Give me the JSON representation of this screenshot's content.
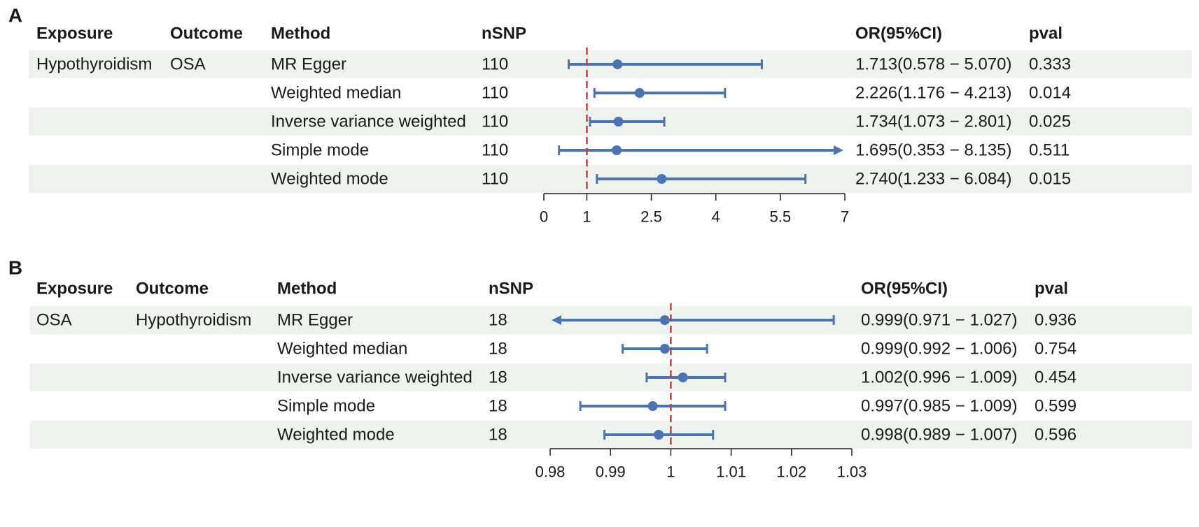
{
  "columns": [
    "Exposure",
    "Outcome",
    "Method",
    "nSNP",
    "OR(95%CI)",
    "pval"
  ],
  "colors": {
    "stripe": "#eef3ee",
    "marker": "#4a74b4",
    "reference": "#e0302a",
    "axis": "#222222"
  },
  "chart_data": [
    {
      "panel": "A",
      "type": "forest",
      "exposure": "Hypothyroidism",
      "outcome": "OSA",
      "reference_line": 1,
      "xlim": [
        0,
        7
      ],
      "ticks": [
        0,
        1,
        2.5,
        4,
        5.5,
        7
      ],
      "tick_labels": [
        "0",
        "1",
        "2.5",
        "4",
        "5.5",
        "7"
      ],
      "rows": [
        {
          "method": "MR Egger",
          "nsnp": "110",
          "or": 1.713,
          "lower": 0.578,
          "upper": 5.07,
          "arrow_left": false,
          "arrow_right": false,
          "or_ci": "1.713(0.578 − 5.070)",
          "pval": "0.333"
        },
        {
          "method": "Weighted median",
          "nsnp": "110",
          "or": 2.226,
          "lower": 1.176,
          "upper": 4.213,
          "arrow_left": false,
          "arrow_right": false,
          "or_ci": "2.226(1.176 − 4.213)",
          "pval": "0.014"
        },
        {
          "method": "Inverse variance weighted",
          "nsnp": "110",
          "or": 1.734,
          "lower": 1.073,
          "upper": 2.801,
          "arrow_left": false,
          "arrow_right": false,
          "or_ci": "1.734(1.073 − 2.801)",
          "pval": "0.025"
        },
        {
          "method": "Simple mode",
          "nsnp": "110",
          "or": 1.695,
          "lower": 0.353,
          "upper": 8.135,
          "arrow_left": false,
          "arrow_right": true,
          "or_ci": "1.695(0.353 − 8.135)",
          "pval": "0.511"
        },
        {
          "method": "Weighted mode",
          "nsnp": "110",
          "or": 2.74,
          "lower": 1.233,
          "upper": 6.084,
          "arrow_left": false,
          "arrow_right": false,
          "or_ci": "2.740(1.233 − 6.084)",
          "pval": "0.015"
        }
      ]
    },
    {
      "panel": "B",
      "type": "forest",
      "exposure": "OSA",
      "outcome": "Hypothyroidism",
      "reference_line": 1,
      "xlim": [
        0.98,
        1.03
      ],
      "ticks": [
        0.98,
        0.99,
        1,
        1.01,
        1.02,
        1.03
      ],
      "tick_labels": [
        "0.98",
        "0.99",
        "1",
        "1.01",
        "1.02",
        "1.03"
      ],
      "rows": [
        {
          "method": "MR Egger",
          "nsnp": "18",
          "or": 0.999,
          "lower": 0.971,
          "upper": 1.027,
          "arrow_left": true,
          "arrow_right": false,
          "or_ci": "0.999(0.971 − 1.027)",
          "pval": "0.936"
        },
        {
          "method": "Weighted median",
          "nsnp": "18",
          "or": 0.999,
          "lower": 0.992,
          "upper": 1.006,
          "arrow_left": false,
          "arrow_right": false,
          "or_ci": "0.999(0.992 − 1.006)",
          "pval": "0.754"
        },
        {
          "method": "Inverse variance weighted",
          "nsnp": "18",
          "or": 1.002,
          "lower": 0.996,
          "upper": 1.009,
          "arrow_left": false,
          "arrow_right": false,
          "or_ci": "1.002(0.996 − 1.009)",
          "pval": "0.454"
        },
        {
          "method": "Simple mode",
          "nsnp": "18",
          "or": 0.997,
          "lower": 0.985,
          "upper": 1.009,
          "arrow_left": false,
          "arrow_right": false,
          "or_ci": "0.997(0.985 − 1.009)",
          "pval": "0.599"
        },
        {
          "method": "Weighted mode",
          "nsnp": "18",
          "or": 0.998,
          "lower": 0.989,
          "upper": 1.007,
          "arrow_left": false,
          "arrow_right": false,
          "or_ci": "0.998(0.989 − 1.007)",
          "pval": "0.596"
        }
      ]
    }
  ]
}
